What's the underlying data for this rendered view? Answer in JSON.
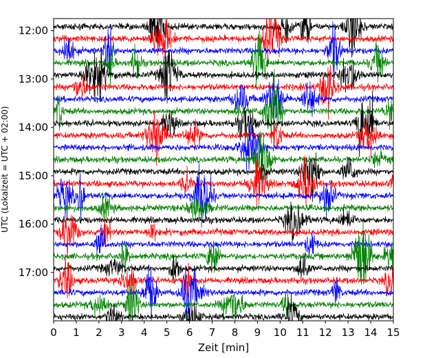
{
  "chart_data": {
    "type": "line",
    "title": "",
    "xlabel": "Zeit  [min]",
    "ylabel": "UTC (Lokalzeit = UTC + 02:00)",
    "xlim": [
      0,
      15
    ],
    "x_ticks": [
      "0",
      "1",
      "2",
      "3",
      "4",
      "5",
      "6",
      "7",
      "8",
      "9",
      "10",
      "11",
      "12",
      "13",
      "14",
      "15"
    ],
    "y_ticks": [
      "12:00",
      "13:00",
      "14:00",
      "15:00",
      "16:00",
      "17:00"
    ],
    "y_range_hours": [
      "11:45",
      "18:00"
    ],
    "trace_interval_min": 15,
    "trace_colors": [
      "#000000",
      "#ff0000",
      "#0000ff",
      "#008000"
    ],
    "grid": false,
    "legend": "none"
  }
}
